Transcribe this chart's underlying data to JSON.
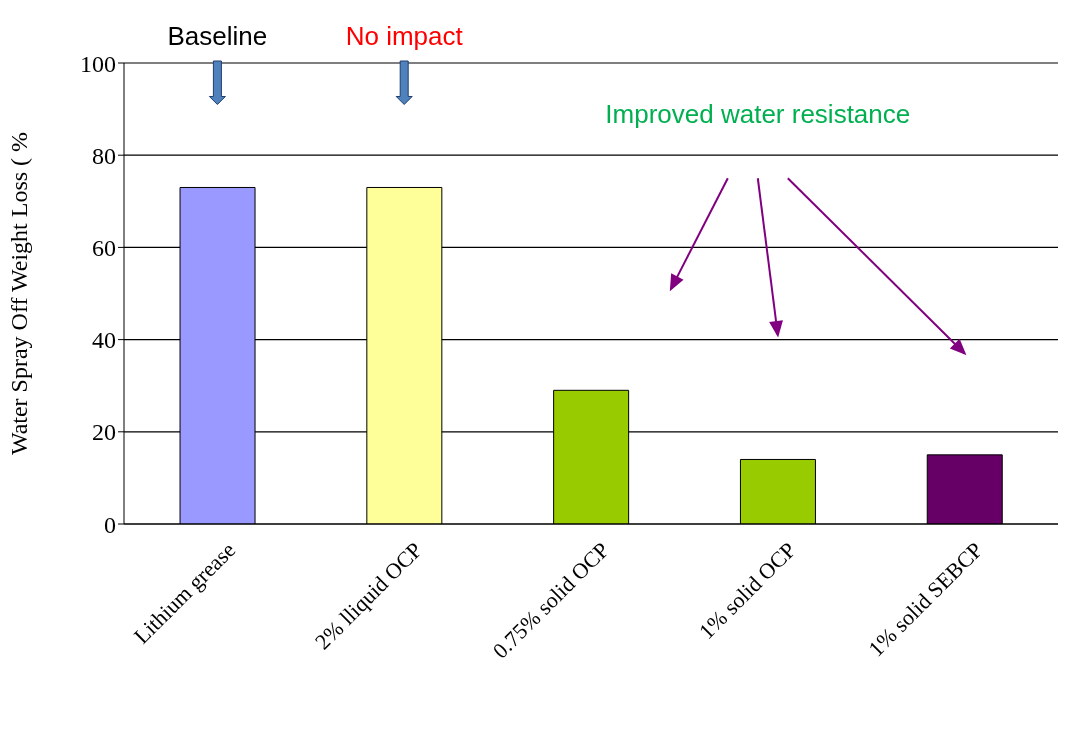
{
  "chart_data": {
    "type": "bar",
    "ylabel": "Water Spray Off Weight Loss ( %",
    "categories": [
      "Lithium grease",
      "2% lliquid OCP",
      "0.75% solid OCP",
      "1% solid OCP",
      "1% solid SEBCP"
    ],
    "values": [
      73,
      73,
      29,
      14,
      15
    ],
    "colors": [
      "#9999ff",
      "#ffff99",
      "#99cc00",
      "#99cc00",
      "#660066"
    ],
    "ylim": [
      0,
      100
    ],
    "yticks": [
      0,
      20,
      40,
      60,
      80,
      100
    ],
    "grid": "y",
    "annotations": [
      "Baseline",
      "No impact",
      "Improved water resistance"
    ]
  }
}
